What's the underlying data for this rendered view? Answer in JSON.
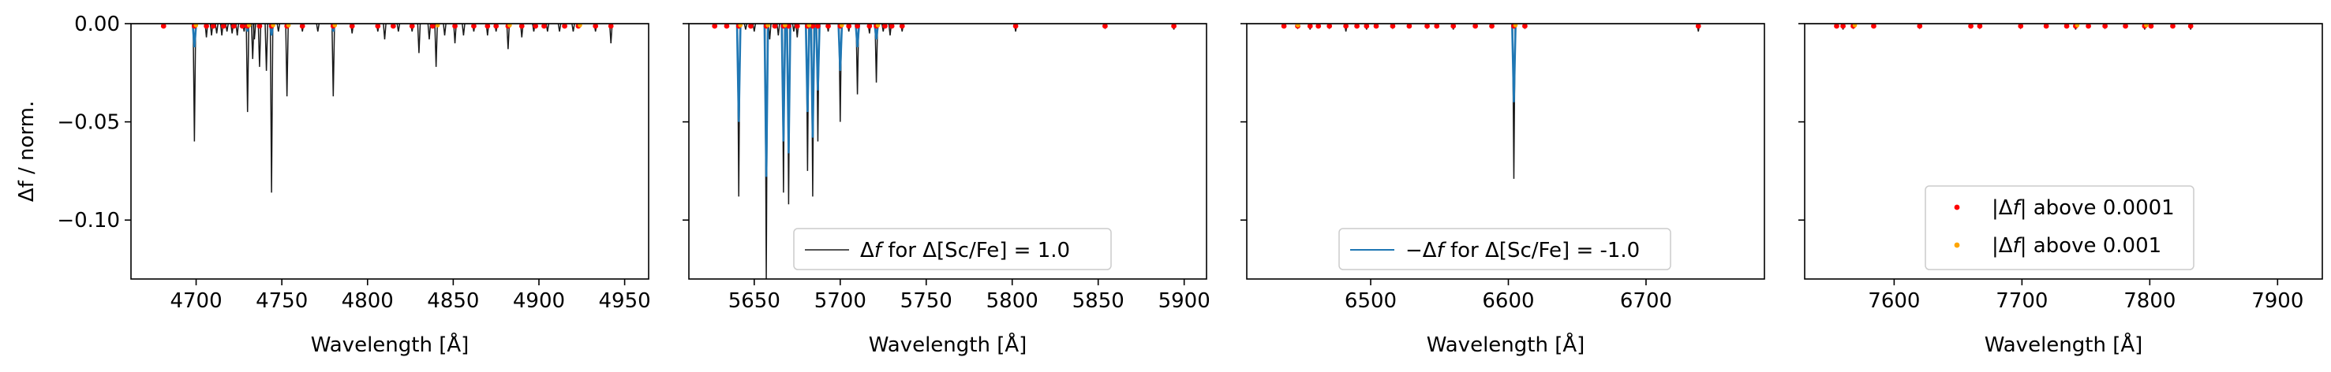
{
  "chart_data": {
    "type": "line",
    "ylabel": "Δf / norm.",
    "ylim": [
      -0.13,
      0.0
    ],
    "yticks": [
      0.0,
      -0.05,
      -0.1
    ],
    "ytick_labels": [
      "0.00",
      "−0.05",
      "−0.10"
    ],
    "colors": {
      "delta_pos": "#1a1a1a",
      "delta_neg": "#1f77b4",
      "above_0001": "#ff0000",
      "above_001": "#ffa500",
      "frame": "#000000"
    },
    "panels": [
      {
        "xlabel": "Wavelength [Å]",
        "xlim": [
          4662,
          4964
        ],
        "xticks": [
          4700,
          4750,
          4800,
          4850,
          4900,
          4950
        ],
        "lines_pos": [
          [
            4699,
            -0.06
          ],
          [
            4706,
            -0.007
          ],
          [
            4709,
            -0.006
          ],
          [
            4712,
            -0.005
          ],
          [
            4715,
            -0.006
          ],
          [
            4718,
            -0.004
          ],
          [
            4721,
            -0.005
          ],
          [
            4724,
            -0.006
          ],
          [
            4728,
            -0.004
          ],
          [
            4730,
            -0.045
          ],
          [
            4733,
            -0.018
          ],
          [
            4734,
            -0.008
          ],
          [
            4737,
            -0.022
          ],
          [
            4741,
            -0.024
          ],
          [
            4744,
            -0.086
          ],
          [
            4748,
            -0.004
          ],
          [
            4753,
            -0.037
          ],
          [
            4762,
            -0.004
          ],
          [
            4771,
            -0.004
          ],
          [
            4780,
            -0.037
          ],
          [
            4791,
            -0.005
          ],
          [
            4806,
            -0.004
          ],
          [
            4810,
            -0.008
          ],
          [
            4818,
            -0.004
          ],
          [
            4826,
            -0.004
          ],
          [
            4830,
            -0.015
          ],
          [
            4836,
            -0.008
          ],
          [
            4840,
            -0.022
          ],
          [
            4845,
            -0.006
          ],
          [
            4851,
            -0.01
          ],
          [
            4856,
            -0.006
          ],
          [
            4862,
            -0.004
          ],
          [
            4870,
            -0.006
          ],
          [
            4875,
            -0.004
          ],
          [
            4882,
            -0.013
          ],
          [
            4890,
            -0.007
          ],
          [
            4897,
            -0.004
          ],
          [
            4905,
            -0.004
          ],
          [
            4912,
            -0.004
          ],
          [
            4920,
            -0.004
          ],
          [
            4933,
            -0.004
          ],
          [
            4942,
            -0.01
          ]
        ],
        "lines_neg": [
          [
            4699,
            -0.012
          ],
          [
            4730,
            -0.004
          ],
          [
            4744,
            -0.006
          ],
          [
            4780,
            -0.004
          ]
        ],
        "pts_0001": [
          4681,
          4699,
          4706,
          4710,
          4716,
          4722,
          4727,
          4730,
          4737,
          4744,
          4753,
          4762,
          4780,
          4791,
          4806,
          4815,
          4826,
          4838,
          4851,
          4862,
          4870,
          4875,
          4882,
          4890,
          4898,
          4903,
          4915,
          4923,
          4933,
          4942
        ],
        "pts_001": [
          4699,
          4730,
          4744,
          4753,
          4780,
          4840,
          4882,
          4923
        ]
      },
      {
        "xlabel": "Wavelength [Å]",
        "xlim": [
          5612,
          5913
        ],
        "xticks": [
          5650,
          5700,
          5750,
          5800,
          5850,
          5900
        ],
        "lines_pos": [
          [
            5641,
            -0.088
          ],
          [
            5645,
            -0.003
          ],
          [
            5650,
            -0.004
          ],
          [
            5657,
            -0.13
          ],
          [
            5659,
            -0.008
          ],
          [
            5664,
            -0.006
          ],
          [
            5667,
            -0.086
          ],
          [
            5670,
            -0.092
          ],
          [
            5673,
            -0.004
          ],
          [
            5675,
            -0.007
          ],
          [
            5681,
            -0.075
          ],
          [
            5684,
            -0.088
          ],
          [
            5687,
            -0.06
          ],
          [
            5693,
            -0.004
          ],
          [
            5700,
            -0.05
          ],
          [
            5705,
            -0.004
          ],
          [
            5710,
            -0.036
          ],
          [
            5717,
            -0.005
          ],
          [
            5721,
            -0.03
          ],
          [
            5725,
            -0.004
          ],
          [
            5729,
            -0.006
          ],
          [
            5736,
            -0.004
          ],
          [
            5802,
            -0.004
          ],
          [
            5854,
            -0.002
          ],
          [
            5894,
            -0.003
          ]
        ],
        "lines_neg": [
          [
            5641,
            -0.05
          ],
          [
            5657,
            -0.078
          ],
          [
            5667,
            -0.06
          ],
          [
            5670,
            -0.066
          ],
          [
            5681,
            -0.045
          ],
          [
            5684,
            -0.058
          ],
          [
            5687,
            -0.034
          ],
          [
            5700,
            -0.024
          ],
          [
            5710,
            -0.012
          ],
          [
            5721,
            -0.008
          ]
        ],
        "pts_0001": [
          5627,
          5634,
          5641,
          5648,
          5657,
          5662,
          5667,
          5670,
          5675,
          5681,
          5684,
          5687,
          5693,
          5700,
          5705,
          5710,
          5717,
          5721,
          5726,
          5730,
          5736,
          5802,
          5854,
          5894
        ],
        "pts_001": [
          5641,
          5657,
          5667,
          5681,
          5700,
          5721
        ]
      },
      {
        "xlabel": "Wavelength [Å]",
        "xlim": [
          6410,
          6786
        ],
        "xticks": [
          6500,
          6600,
          6700
        ],
        "lines_pos": [
          [
            6447,
            -0.002
          ],
          [
            6456,
            -0.003
          ],
          [
            6470,
            -0.002
          ],
          [
            6482,
            -0.004
          ],
          [
            6497,
            -0.003
          ],
          [
            6516,
            -0.002
          ],
          [
            6541,
            -0.002
          ],
          [
            6560,
            -0.003
          ],
          [
            6604,
            -0.079
          ],
          [
            6612,
            -0.002
          ],
          [
            6738,
            -0.004
          ]
        ],
        "lines_neg": [
          [
            6604,
            -0.04
          ]
        ],
        "pts_0001": [
          6437,
          6447,
          6456,
          6462,
          6470,
          6482,
          6490,
          6497,
          6504,
          6516,
          6528,
          6541,
          6548,
          6560,
          6576,
          6588,
          6604,
          6612,
          6738
        ],
        "pts_001": [
          6446,
          6604
        ]
      },
      {
        "xlabel": "Wavelength [Å]",
        "xlim": [
          7530,
          7935
        ],
        "xticks": [
          7600,
          7700,
          7800,
          7900
        ],
        "lines_pos": [
          [
            7560,
            -0.003
          ],
          [
            7568,
            -0.002
          ],
          [
            7620,
            -0.002
          ],
          [
            7667,
            -0.002
          ],
          [
            7699,
            -0.002
          ],
          [
            7742,
            -0.003
          ],
          [
            7765,
            -0.002
          ],
          [
            7796,
            -0.003
          ],
          [
            7832,
            -0.003
          ]
        ],
        "lines_neg": [],
        "pts_0001": [
          7555,
          7560,
          7568,
          7584,
          7620,
          7660,
          7667,
          7699,
          7719,
          7735,
          7742,
          7752,
          7765,
          7781,
          7796,
          7801,
          7818,
          7832
        ],
        "pts_001": [
          7568,
          7742,
          7796
        ]
      }
    ],
    "legends": [
      {
        "panel": 1,
        "position": "lower-right",
        "entries": [
          {
            "kind": "line",
            "color": "delta_pos",
            "math": "Δ",
            "italic": "f",
            "text": " for Δ[Sc/Fe] = 1.0"
          }
        ]
      },
      {
        "panel": 2,
        "position": "lower-center",
        "entries": [
          {
            "kind": "line",
            "color": "delta_neg",
            "math": "−Δ",
            "italic": "f",
            "text": " for Δ[Sc/Fe] = -1.0"
          }
        ]
      },
      {
        "panel": 3,
        "position": "lower-center",
        "entries": [
          {
            "kind": "point",
            "color": "above_0001",
            "math": "|Δ",
            "italic": "f",
            "text": "| above 0.0001"
          },
          {
            "kind": "point",
            "color": "above_001",
            "math": "|Δ",
            "italic": "f",
            "text": "| above 0.001"
          }
        ]
      }
    ]
  }
}
